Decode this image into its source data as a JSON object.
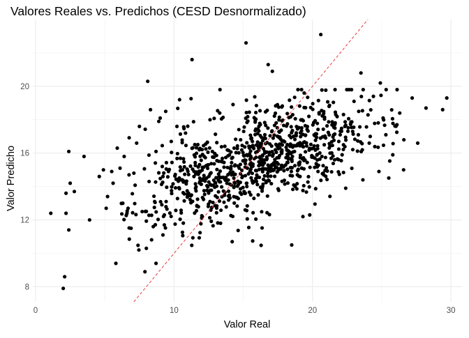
{
  "chart_data": {
    "type": "scatter",
    "title": "Valores Reales vs. Predichos (CESD Desnormalizado)",
    "xlabel": "Valor Real",
    "ylabel": "Valor Predicho",
    "xlim": [
      -0.2,
      30.8
    ],
    "ylim": [
      7.1,
      24.0
    ],
    "x_ticks": [
      0,
      10,
      20,
      30
    ],
    "x_tick_labels": [
      "0",
      "10",
      "20",
      "30"
    ],
    "y_ticks": [
      8,
      12,
      16,
      20
    ],
    "y_tick_labels": [
      "8",
      "12",
      "16",
      "20"
    ],
    "grid": true,
    "legend": "none",
    "reference_line": {
      "type": "identity",
      "style": "dashed",
      "color": "#e8373a"
    },
    "point_color": "#000000",
    "point_count_estimate": 1000,
    "series": [
      {
        "values": {
          "x": [
            1.1,
            2.0,
            2.1,
            2.2,
            2.2,
            2.4,
            2.4,
            2.5,
            2.8,
            3.5,
            3.9,
            4.6,
            4.9,
            5.1,
            5.2,
            5.5,
            5.6,
            5.8,
            5.9,
            6.1,
            6.3,
            6.4,
            6.6,
            6.9,
            7.1,
            7.3,
            7.5,
            7.7,
            7.9,
            8.0,
            8.2,
            8.3,
            8.6,
            8.7,
            8.9,
            9.0,
            9.2,
            9.4,
            9.6,
            8.1,
            8.5,
            9.8,
            10.4,
            11.3,
            12.6,
            13.3,
            14.2,
            15.6,
            17.1,
            18.5,
            19.4,
            20.1,
            20.6,
            21.2,
            22.0,
            22.4,
            23.0,
            23.5,
            24.1,
            24.4,
            24.9,
            25.3,
            25.8,
            26.3,
            26.6,
            27.2,
            27.6,
            28.2,
            29.4,
            29.7,
            23.6,
            24.8,
            25.1,
            26.1,
            8.7,
            9.3,
            10.6,
            15.2,
            16.8,
            18.7,
            19.8,
            20.4,
            21.6,
            22.9
          ],
          "y": [
            12.4,
            7.9,
            8.6,
            13.6,
            12.4,
            11.4,
            16.1,
            14.2,
            13.7,
            15.8,
            12.0,
            14.6,
            15.0,
            12.7,
            13.4,
            14.9,
            14.2,
            9.4,
            16.3,
            15.1,
            13.0,
            15.8,
            12.4,
            11.5,
            14.8,
            16.6,
            17.6,
            12.5,
            8.9,
            10.3,
            14.3,
            18.6,
            13.1,
            16.1,
            17.9,
            18.1,
            11.1,
            18.5,
            14.9,
            20.3,
            11.6,
            16.7,
            19.2,
            21.6,
            13.1,
            18.4,
            10.7,
            16.9,
            20.9,
            10.5,
            19.6,
            16.3,
            23.1,
            18.8,
            17.1,
            13.9,
            19.1,
            20.8,
            16.6,
            19.4,
            20.2,
            17.1,
            15.9,
            18.4,
            16.8,
            19.3,
            16.6,
            18.7,
            18.6,
            19.3,
            16.2,
            14.9,
            18.1,
            17.7,
            9.4,
            11.7,
            14.4,
            22.6,
            21.3,
            16.1,
            12.3,
            14.9,
            15.6,
            17.3
          ]
        }
      }
    ]
  }
}
